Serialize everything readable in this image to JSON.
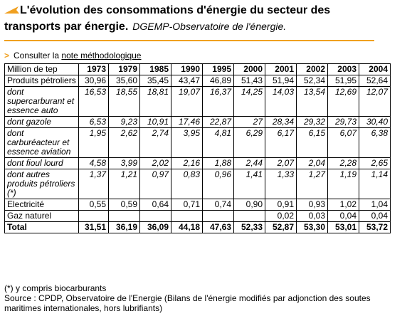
{
  "title": {
    "line1": "L'évolution des consommations d'énergie du secteur des",
    "line2": "transports par énergie.",
    "source": "DGEMP-Observatoire de l'énergie."
  },
  "method_note": {
    "prefix": "Consulter la",
    "link": "note méthodologique"
  },
  "table": {
    "header_label": "Million de tep",
    "years": [
      "1973",
      "1979",
      "1985",
      "1990",
      "1995",
      "2000",
      "2001",
      "2002",
      "2003",
      "2004"
    ],
    "rows": [
      {
        "label": "Produits pétroliers",
        "style": "normal",
        "values": [
          "30,96",
          "35,60",
          "35,45",
          "43,47",
          "46,89",
          "51,43",
          "51,94",
          "52,34",
          "51,95",
          "52,64"
        ]
      },
      {
        "label": "dont supercarburant et essence auto",
        "style": "italic",
        "values": [
          "16,53",
          "18,55",
          "18,81",
          "19,07",
          "16,37",
          "14,25",
          "14,03",
          "13,54",
          "12,69",
          "12,07"
        ]
      },
      {
        "label": "dont gazole",
        "style": "italic",
        "values": [
          "6,53",
          "9,23",
          "10,91",
          "17,46",
          "22,87",
          "27",
          "28,34",
          "29,32",
          "29,73",
          "30,40"
        ]
      },
      {
        "label": "dont carburéacteur et essence aviation",
        "style": "italic",
        "values": [
          "1,95",
          "2,62",
          "2,74",
          "3,95",
          "4,81",
          "6,29",
          "6,17",
          "6,15",
          "6,07",
          "6,38"
        ]
      },
      {
        "label": "dont fioul lourd",
        "style": "italic",
        "values": [
          "4,58",
          "3,99",
          "2,02",
          "2,16",
          "1,88",
          "2,44",
          "2,07",
          "2,04",
          "2,28",
          "2,65"
        ]
      },
      {
        "label": "dont autres produits pétroliers (*)",
        "style": "italic",
        "values": [
          "1,37",
          "1,21",
          "0,97",
          "0,83",
          "0,96",
          "1,41",
          "1,33",
          "1,27",
          "1,19",
          "1,14"
        ]
      },
      {
        "label": "Electricité",
        "style": "normal",
        "values": [
          "0,55",
          "0,59",
          "0,64",
          "0,71",
          "0,74",
          "0,90",
          "0,91",
          "0,93",
          "1,02",
          "1,04"
        ]
      },
      {
        "label": "Gaz naturel",
        "style": "normal",
        "values": [
          "",
          "",
          "",
          "",
          "",
          "",
          "0,02",
          "0,03",
          "0,04",
          "0,04"
        ]
      },
      {
        "label": "Total",
        "style": "total",
        "values": [
          "31,51",
          "36,19",
          "36,09",
          "44,18",
          "47,63",
          "52,33",
          "52,87",
          "53,30",
          "53,01",
          "53,72"
        ]
      }
    ]
  },
  "footnotes": {
    "note": "(*) y compris biocarburants",
    "source": "Source : CPDP, Observatoire de l'Energie (Bilans de l'énergie modifiés par adjonction des soutes maritimes internationales, hors lubrifiants)"
  },
  "colors": {
    "accent": "#f0a020"
  }
}
